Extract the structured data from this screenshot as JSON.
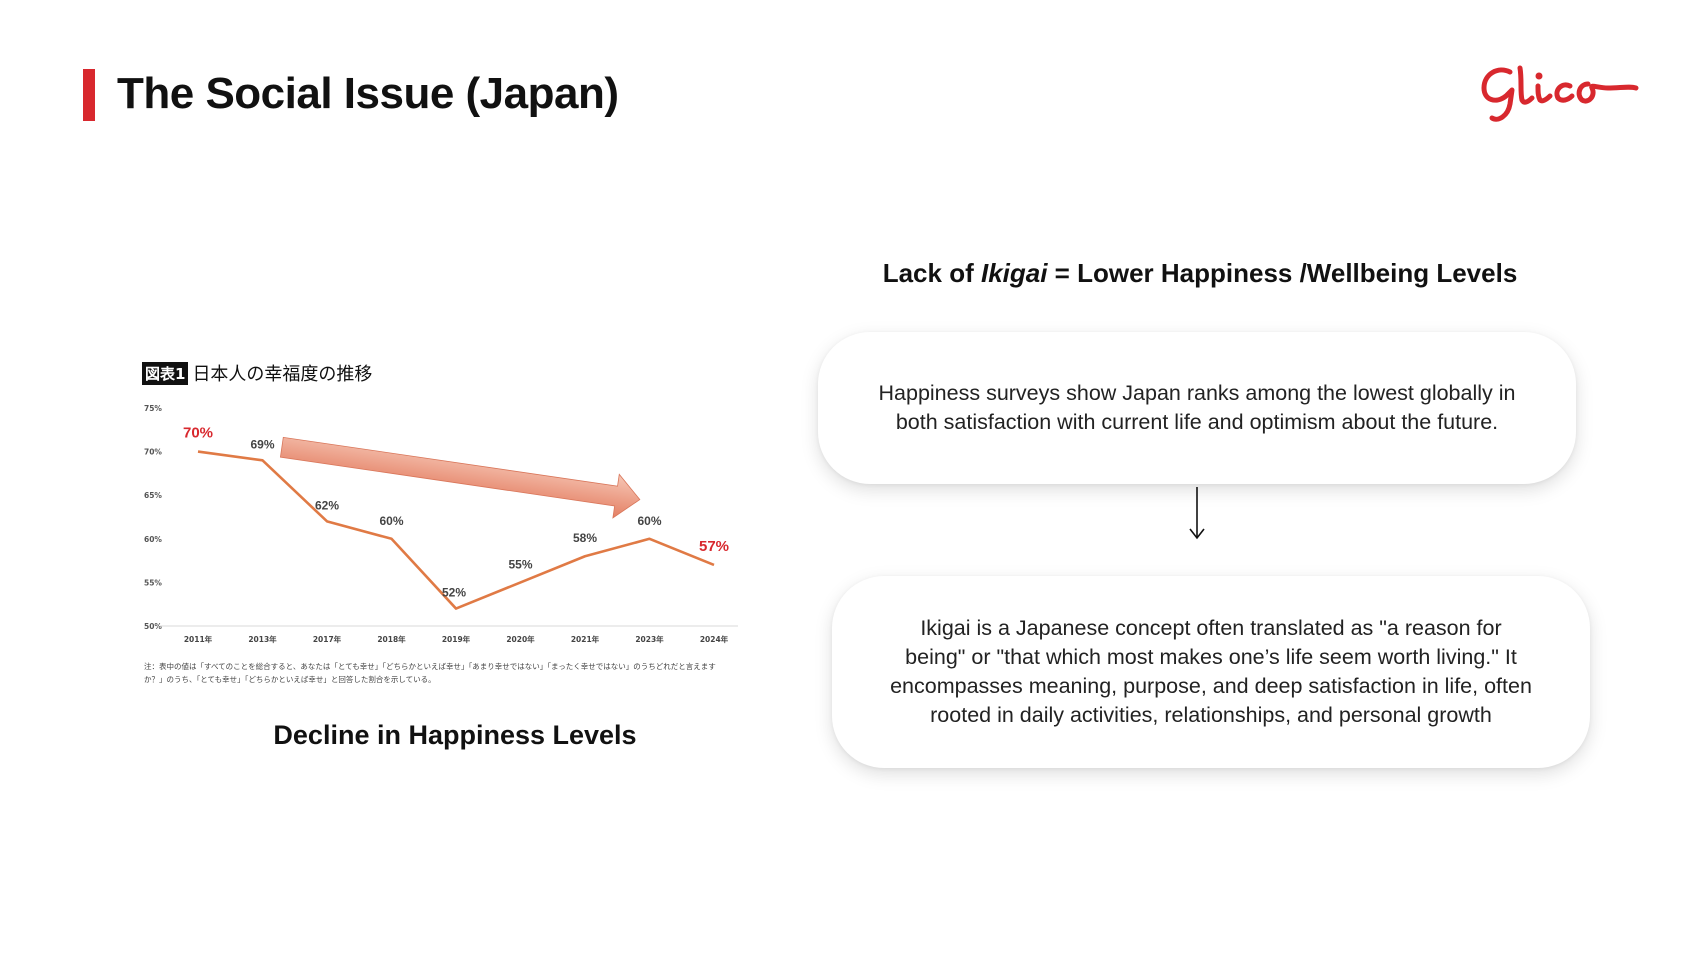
{
  "header": {
    "title": "The Social Issue (Japan)",
    "logo_text": "Glico",
    "accent_color": "#d8282e"
  },
  "chart": {
    "badge": "図表1",
    "heading": "日本人の幸福度の推移",
    "note_line1": "注：表中の値は「すべてのことを総合すると、あなたは「とても幸せ」「どちらかといえば幸せ」「あまり幸せではない」「まったく幸せではない」のうちどれだと言えます",
    "note_line2": "か？」のうち、「とても幸せ」「どちらかといえば幸せ」と回答した割合を示している。",
    "caption": "Decline in Happiness Levels"
  },
  "chart_data": {
    "type": "line",
    "title": "日本人の幸福度の推移",
    "xlabel": "",
    "ylabel": "",
    "categories": [
      "2011年",
      "2013年",
      "2017年",
      "2018年",
      "2019年",
      "2020年",
      "2021年",
      "2023年",
      "2024年"
    ],
    "series": [
      {
        "values": [
          70,
          69,
          62,
          60,
          52,
          55,
          58,
          60,
          57
        ]
      }
    ],
    "data_labels": [
      "70%",
      "69%",
      "62%",
      "60%",
      "52%",
      "55%",
      "58%",
      "60%",
      "57%"
    ],
    "highlighted_labels": [
      0,
      8
    ],
    "y_ticks": [
      "50%",
      "55%",
      "60%",
      "65%",
      "70%",
      "75%"
    ],
    "ylim": [
      50,
      75
    ],
    "grid": false,
    "line_color": "#e07a45",
    "highlight_color": "#d8282e",
    "trend_arrow": "downward",
    "trend_arrow_color": "#e8907a"
  },
  "right": {
    "heading_prefix": "Lack of ",
    "heading_em": "Ikigai",
    "heading_suffix": " = Lower Happiness /Wellbeing  Levels",
    "card1_line1": "Happiness surveys show Japan ranks among the lowest globally in",
    "card1_line2": "both satisfaction with current life and optimism about the future.",
    "card2_line1": "Ikigai is a Japanese concept often translated as \"a reason for",
    "card2_line2": "being\" or \"that which most makes one’s life seem worth living.\" It",
    "card2_line3": "encompasses meaning, purpose, and deep satisfaction in life, often",
    "card2_line4": "rooted in daily activities, relationships, and personal growth"
  }
}
